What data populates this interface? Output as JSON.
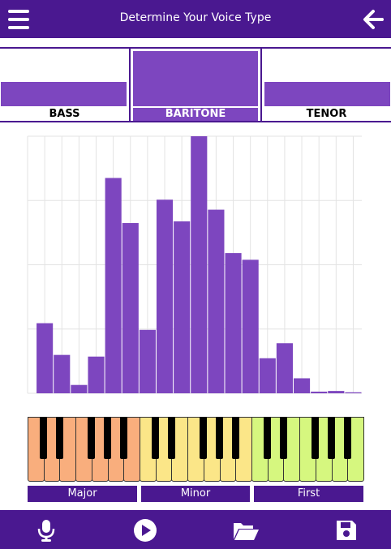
{
  "header": {
    "title": "Determine Your Voice Type",
    "menu_icon": "menu-icon",
    "back_icon": "arrow-left-icon"
  },
  "voice_types": [
    {
      "label": "BASS",
      "selected": false
    },
    {
      "label": "BARITONE",
      "selected": true
    },
    {
      "label": "TENOR",
      "selected": false
    }
  ],
  "colors": {
    "primary": "#4a1890",
    "accent": "#7d46bf",
    "key_major": "#f9ae7d",
    "key_minor": "#fbe688",
    "key_first": "#d6f77f"
  },
  "chart_data": {
    "type": "bar",
    "values": [
      21,
      11.5,
      2.5,
      11,
      64.5,
      51,
      19,
      58,
      51.5,
      77,
      55,
      42,
      40,
      10.5,
      15,
      4.5,
      0.5,
      0.7,
      0.3
    ],
    "ylim": [
      0,
      77
    ],
    "grid": true
  },
  "keyboard": {
    "groups": [
      {
        "label": "Major",
        "color": "#f9ae7d"
      },
      {
        "label": "Minor",
        "color": "#fbe688"
      },
      {
        "label": "First",
        "color": "#d6f77f"
      }
    ]
  },
  "footer": {
    "icons": [
      "microphone-icon",
      "play-icon",
      "folder-icon",
      "save-icon"
    ]
  }
}
